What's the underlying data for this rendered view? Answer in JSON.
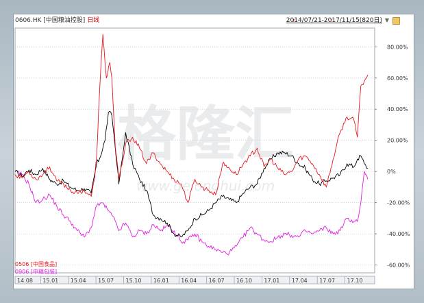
{
  "header": {
    "code": "0606.HK [中国粮油控股]",
    "period": "日线",
    "date_range": "2014/07/21-2017/11/15(820日)",
    "caret": "▼"
  },
  "watermark": {
    "text": "格隆汇",
    "url": "www.gelonghui.com"
  },
  "legend": {
    "items": [
      {
        "label": "0506 [中国食品]",
        "color": "#e8171d"
      },
      {
        "label": "0906 [中粮包装]",
        "color": "#e21ce0"
      }
    ]
  },
  "colors": {
    "main": "#000000"
  },
  "chart_data": {
    "type": "line",
    "xlabel": "",
    "ylabel": "",
    "ylim": [
      -65,
      92
    ],
    "x_ticks": [
      "14.08",
      "15.01",
      "15.04",
      "15.07",
      "15.10",
      "16.01",
      "16.04",
      "16.07",
      "16.10",
      "17.01",
      "17.04",
      "17.07",
      "17.10"
    ],
    "y_ticks": [
      "80.00%",
      "60.00%",
      "40.00%",
      "20.00%",
      "0%",
      "-20.00%",
      "-40.00%",
      "-60.00%"
    ],
    "series": [
      {
        "name": "0606.HK [中国粮油控股]",
        "x": [
          0,
          10,
          20,
          30,
          40,
          50,
          60,
          70,
          80,
          90,
          100,
          110,
          118,
          122,
          130,
          135,
          140,
          148,
          150,
          155,
          160,
          170,
          180,
          190,
          200,
          210,
          220,
          230,
          240,
          250,
          260,
          270,
          280,
          290,
          300,
          310,
          320,
          330,
          340,
          350,
          360,
          370,
          380,
          390,
          400,
          410,
          420,
          430,
          440,
          450,
          460,
          470,
          480,
          490,
          495,
          500,
          505,
          510
        ],
        "y": [
          0,
          -3,
          1,
          -2,
          2,
          -5,
          -8,
          -6,
          -10,
          -12,
          -11,
          -14,
          5,
          8,
          20,
          38,
          36,
          2,
          -8,
          8,
          25,
          5,
          -5,
          -12,
          -28,
          -30,
          -33,
          -40,
          -42,
          -38,
          -30,
          -28,
          -25,
          -20,
          -16,
          -18,
          -20,
          -14,
          -10,
          -8,
          2,
          8,
          12,
          12,
          10,
          5,
          2,
          -5,
          -8,
          -6,
          -4,
          -2,
          5,
          3,
          8,
          10,
          5,
          2
        ]
      },
      {
        "name": "0506 [中国食品]",
        "x": [
          0,
          10,
          20,
          30,
          40,
          50,
          60,
          70,
          80,
          90,
          100,
          110,
          115,
          118,
          122,
          127,
          132,
          137,
          140,
          145,
          150,
          155,
          160,
          165,
          170,
          180,
          190,
          200,
          210,
          220,
          230,
          240,
          250,
          260,
          270,
          280,
          290,
          300,
          310,
          320,
          330,
          340,
          350,
          360,
          370,
          380,
          390,
          400,
          410,
          420,
          430,
          440,
          450,
          460,
          470,
          480,
          490,
          495,
          500,
          505,
          510
        ],
        "y": [
          -2,
          -4,
          0,
          -5,
          -2,
          3,
          -6,
          -8,
          -12,
          -14,
          -12,
          -16,
          -5,
          10,
          50,
          88,
          60,
          70,
          60,
          15,
          -5,
          5,
          18,
          20,
          22,
          15,
          5,
          12,
          5,
          0,
          -5,
          -8,
          -20,
          -5,
          -10,
          -12,
          -15,
          5,
          2,
          -2,
          5,
          10,
          15,
          3,
          8,
          2,
          -2,
          0,
          8,
          10,
          5,
          -2,
          -10,
          8,
          25,
          35,
          33,
          22,
          55,
          58,
          62
        ]
      },
      {
        "name": "0906 [中粮包装]",
        "x": [
          0,
          10,
          20,
          30,
          40,
          50,
          60,
          70,
          80,
          90,
          100,
          110,
          118,
          125,
          135,
          145,
          150,
          160,
          170,
          180,
          190,
          200,
          210,
          220,
          230,
          240,
          250,
          260,
          270,
          280,
          290,
          300,
          310,
          320,
          330,
          340,
          350,
          360,
          370,
          380,
          390,
          400,
          410,
          420,
          430,
          440,
          450,
          460,
          470,
          480,
          490,
          495,
          500,
          505,
          510
        ],
        "y": [
          0,
          -2,
          -8,
          -20,
          -18,
          -15,
          -22,
          -28,
          -32,
          -38,
          -42,
          -36,
          -22,
          -20,
          -25,
          -32,
          -38,
          -33,
          -42,
          -38,
          -40,
          -34,
          -38,
          -35,
          -38,
          -45,
          -44,
          -40,
          -45,
          -48,
          -50,
          -52,
          -52,
          -48,
          -42,
          -36,
          -40,
          -44,
          -45,
          -42,
          -40,
          -41,
          -42,
          -38,
          -40,
          -38,
          -36,
          -40,
          -38,
          -30,
          -32,
          -32,
          -20,
          0,
          -5
        ]
      }
    ]
  }
}
